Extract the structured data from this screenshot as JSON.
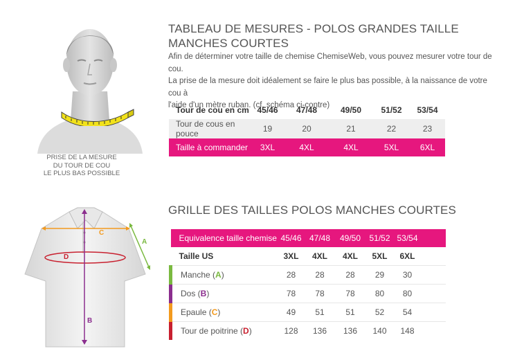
{
  "section1": {
    "title_line1": "TABLEAU DE MESURES - POLOS GRANDES TAILLE",
    "title_line2": "MANCHES COURTES",
    "intro_line1": "Afin de déterminer votre taille de chemise ChemiseWeb, vous pouvez mesurer votre tour de cou.",
    "intro_line2": "La prise de la mesure doit idéalement se faire le plus bas possible, à la naissance de votre cou à",
    "intro_line3": "l'aide d'un mètre ruban. (cf. schéma ci-contre)",
    "caption_line1": "PRISE DE LA MESURE",
    "caption_line2": "DU TOUR DE COU",
    "caption_line3": "LE PLUS BAS POSSIBLE",
    "rows": [
      {
        "label": "Tour de cou en cm",
        "values": [
          "45/46",
          "47/48",
          "49/50",
          "51/52",
          "53/54"
        ]
      },
      {
        "label": "Tour de cous en pouce",
        "values": [
          "19",
          "20",
          "21",
          "22",
          "23"
        ]
      },
      {
        "label": "Taille à commander",
        "values": [
          "3XL",
          "4XL",
          "4XL",
          "5XL",
          "6XL"
        ]
      }
    ]
  },
  "section2": {
    "title": "GRILLE DES TAILLES POLOS MANCHES COURTES",
    "header_row": {
      "label": "Equivalence taille chemise",
      "values": [
        "45/46",
        "47/48",
        "49/50",
        "51/52",
        "53/54"
      ]
    },
    "size_row": {
      "label": "Taille US",
      "values": [
        "3XL",
        "4XL",
        "4XL",
        "5XL",
        "6XL"
      ]
    },
    "rows": [
      {
        "label": "Manche (",
        "letter": "A",
        "close": ")",
        "color": "#7ab940",
        "values": [
          "28",
          "28",
          "28",
          "29",
          "30"
        ]
      },
      {
        "label": "Dos (",
        "letter": "B",
        "close": ")",
        "color": "#8b2e8e",
        "values": [
          "78",
          "78",
          "78",
          "80",
          "80"
        ]
      },
      {
        "label": "Epaule (",
        "letter": "C",
        "close": ")",
        "color": "#f39a1e",
        "values": [
          "49",
          "51",
          "51",
          "52",
          "54"
        ]
      },
      {
        "label": "Tour de poitrine (",
        "letter": "D",
        "close": ")",
        "color": "#c8202f",
        "values": [
          "128",
          "136",
          "136",
          "140",
          "148"
        ]
      }
    ],
    "diagram_labels": {
      "a": "A",
      "b": "B",
      "c": "C",
      "d": "D"
    }
  },
  "colors": {
    "accent_pink": "#e6177e",
    "tape_yellow": "#f2e21a"
  },
  "icons": [
    "man-neck-illustration",
    "measuring-tape-icon",
    "polo-shirt-illustration"
  ]
}
